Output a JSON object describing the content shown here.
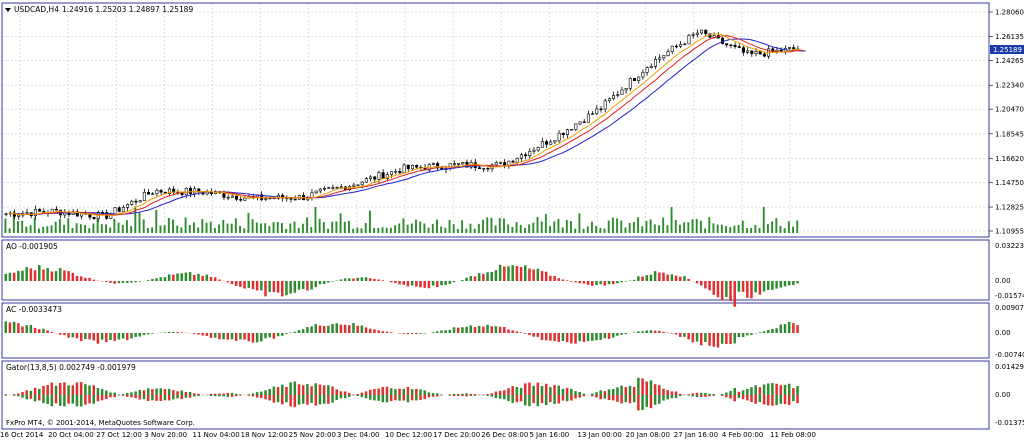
{
  "main": {
    "symbol": "USDCAD,H4",
    "ohlc": "1.24916 1.25203 1.24897 1.25189",
    "current_price": "1.25189",
    "price_ticks": [
      "1.28060",
      "1.26135",
      "1.24265",
      "1.22340",
      "1.20470",
      "1.18545",
      "1.16620",
      "1.14750",
      "1.12825",
      "1.10955"
    ],
    "price_range": [
      1.10955,
      1.2806
    ]
  },
  "ao": {
    "label": "AO -0.001905",
    "ticks": [
      "0.032231",
      "0.00",
      "-0.01574"
    ]
  },
  "ac": {
    "label": "AC -0.0033473",
    "ticks": [
      "0.009071",
      "0.00",
      "-0.007404"
    ]
  },
  "gator": {
    "label": "Gator(13,8,5) 0.002749 -0.001979",
    "ticks": [
      "0.014297",
      "0.00",
      "-0.013756"
    ]
  },
  "copyright": "FxPro MT4, © 2001-2014, MetaQuotes Software Corp.",
  "time_ticks": [
    "16 Oct 2014",
    "20 Oct 04:00",
    "27 Oct 12:00",
    "3 Nov 20:00",
    "11 Nov 04:00",
    "18 Nov 12:00",
    "25 Nov 20:00",
    "3 Dec 04:00",
    "10 Dec 12:00",
    "17 Dec 20:00",
    "26 Dec 08:00",
    "5 Jan 16:00",
    "13 Jan 00:00",
    "20 Jan 08:00",
    "27 Jan 16:00",
    "4 Feb 00:00",
    "11 Feb 08:00"
  ],
  "colors": {
    "border": "#3a3aa0",
    "grid": "#c9c9d6",
    "candle": "#000000",
    "volume": "#2e8b2e",
    "up": "#2e8b2e",
    "down": "#e03030",
    "ma_red": "#e02020",
    "ma_orange": "#f0a000",
    "ma_blue": "#2020d0",
    "price_box": "#1c3aa8"
  },
  "chart_data": [
    {
      "type": "line",
      "title": "USDCAD,H4",
      "ylim": [
        1.10955,
        1.2806
      ],
      "x": [
        "16 Oct 2014",
        "20 Oct 04:00",
        "27 Oct 12:00",
        "3 Nov 20:00",
        "11 Nov 04:00",
        "18 Nov 12:00",
        "25 Nov 20:00",
        "3 Dec 04:00",
        "10 Dec 12:00",
        "17 Dec 20:00",
        "26 Dec 08:00",
        "5 Jan 16:00",
        "13 Jan 00:00",
        "20 Jan 08:00",
        "27 Jan 16:00",
        "4 Feb 00:00",
        "11 Feb 08:00"
      ],
      "series": [
        {
          "values": [
            1.123,
            1.125,
            1.121,
            1.141,
            1.14,
            1.135,
            1.136,
            1.146,
            1.158,
            1.161,
            1.161,
            1.181,
            1.205,
            1.24,
            1.265,
            1.247,
            1.252
          ]
        }
      ]
    },
    {
      "type": "bar",
      "title": "AO -0.001905",
      "ylim": [
        -0.01574,
        0.032231
      ]
    },
    {
      "type": "bar",
      "title": "AC -0.0033473",
      "ylim": [
        -0.007404,
        0.009071
      ]
    },
    {
      "type": "bar",
      "title": "Gator(13,8,5) 0.002749 -0.001979",
      "ylim": [
        -0.013756,
        0.014297
      ]
    }
  ]
}
